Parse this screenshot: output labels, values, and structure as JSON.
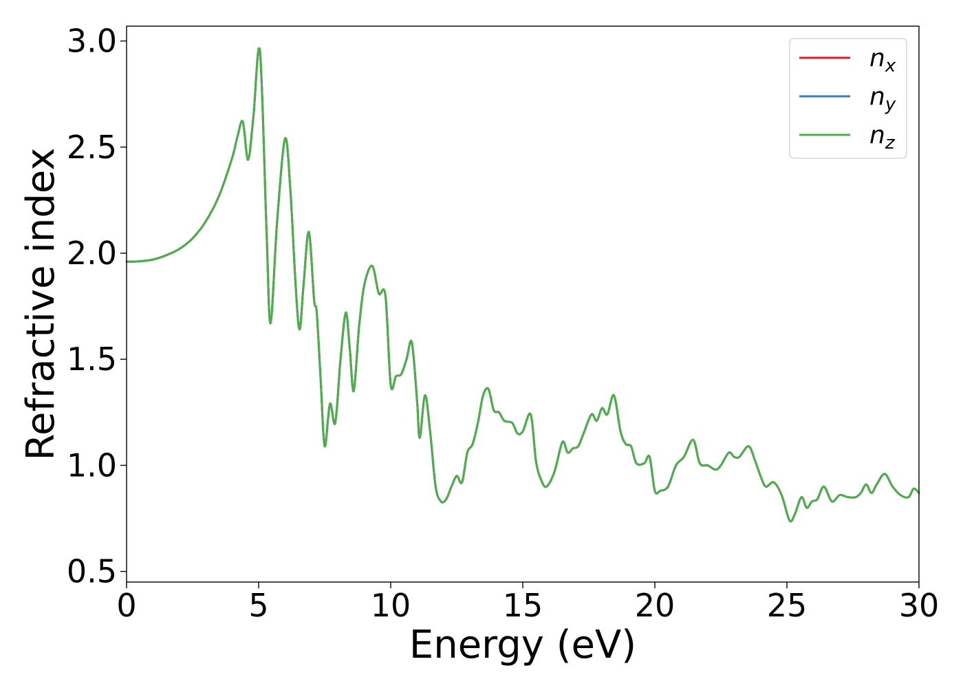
{
  "chart_data": {
    "type": "line",
    "title": "",
    "xlabel": "Energy (eV)",
    "ylabel": "Refractive index",
    "xlim": [
      0,
      30
    ],
    "ylim": [
      0.45,
      3.07
    ],
    "xticks": [
      0,
      5,
      10,
      15,
      20,
      25,
      30
    ],
    "xtick_labels": [
      "0",
      "5",
      "10",
      "15",
      "20",
      "25",
      "30"
    ],
    "yticks": [
      0.5,
      1.0,
      1.5,
      2.0,
      2.5,
      3.0
    ],
    "ytick_labels": [
      "0.5",
      "1.0",
      "1.5",
      "2.0",
      "2.5",
      "3.0"
    ],
    "grid": false,
    "legend_position": "top-right",
    "x": [
      0,
      0.5,
      1,
      1.5,
      2,
      2.5,
      3,
      3.5,
      4,
      4.2,
      4.4,
      4.6,
      4.8,
      5.05,
      5.3,
      5.45,
      5.7,
      6.0,
      6.2,
      6.4,
      6.55,
      6.7,
      6.9,
      7.1,
      7.2,
      7.35,
      7.5,
      7.7,
      7.9,
      8.1,
      8.3,
      8.45,
      8.6,
      8.8,
      9.0,
      9.3,
      9.55,
      9.8,
      10.0,
      10.2,
      10.4,
      10.6,
      10.8,
      11.0,
      11.1,
      11.3,
      11.5,
      11.7,
      11.9,
      12.1,
      12.3,
      12.5,
      12.7,
      12.9,
      13.1,
      13.3,
      13.5,
      13.7,
      13.9,
      14.1,
      14.3,
      14.6,
      14.8,
      15.0,
      15.3,
      15.5,
      15.7,
      15.9,
      16.2,
      16.5,
      16.7,
      16.9,
      17.1,
      17.3,
      17.6,
      17.8,
      18.0,
      18.2,
      18.45,
      18.7,
      18.9,
      19.1,
      19.3,
      19.6,
      19.8,
      20.0,
      20.2,
      20.5,
      20.8,
      21.1,
      21.45,
      21.7,
      22.0,
      22.3,
      22.5,
      22.8,
      23.0,
      23.2,
      23.55,
      23.8,
      24.0,
      24.2,
      24.5,
      24.8,
      25.1,
      25.3,
      25.55,
      25.75,
      25.95,
      26.15,
      26.4,
      26.7,
      27.0,
      27.3,
      27.6,
      27.8,
      28.0,
      28.2,
      28.4,
      28.7,
      29.0,
      29.3,
      29.6,
      29.8,
      30.0
    ],
    "series": [
      {
        "name": "n",
        "sub": "x",
        "color": "#e41a1c",
        "values": [
          1.96,
          1.962,
          1.97,
          1.99,
          2.02,
          2.07,
          2.15,
          2.27,
          2.45,
          2.55,
          2.62,
          2.44,
          2.64,
          2.95,
          2.1,
          1.67,
          2.15,
          2.54,
          2.3,
          1.85,
          1.64,
          1.85,
          2.1,
          1.78,
          1.72,
          1.4,
          1.09,
          1.29,
          1.2,
          1.5,
          1.72,
          1.55,
          1.35,
          1.65,
          1.85,
          1.94,
          1.81,
          1.8,
          1.38,
          1.42,
          1.43,
          1.5,
          1.58,
          1.3,
          1.13,
          1.33,
          1.15,
          0.9,
          0.83,
          0.84,
          0.9,
          0.95,
          0.92,
          1.06,
          1.1,
          1.2,
          1.33,
          1.36,
          1.26,
          1.25,
          1.21,
          1.2,
          1.15,
          1.16,
          1.24,
          1.02,
          0.93,
          0.9,
          0.97,
          1.11,
          1.06,
          1.08,
          1.09,
          1.15,
          1.24,
          1.21,
          1.27,
          1.24,
          1.33,
          1.16,
          1.1,
          1.09,
          1.01,
          1.01,
          1.04,
          0.88,
          0.88,
          0.9,
          1.0,
          1.04,
          1.12,
          1.01,
          1.0,
          0.98,
          1.0,
          1.06,
          1.04,
          1.04,
          1.09,
          1.02,
          0.95,
          0.9,
          0.92,
          0.86,
          0.74,
          0.77,
          0.85,
          0.8,
          0.83,
          0.84,
          0.9,
          0.83,
          0.86,
          0.85,
          0.85,
          0.87,
          0.91,
          0.87,
          0.91,
          0.96,
          0.9,
          0.86,
          0.85,
          0.89,
          0.87
        ]
      },
      {
        "name": "n",
        "sub": "y",
        "color": "#377eb8",
        "values": [
          1.96,
          1.962,
          1.97,
          1.99,
          2.02,
          2.07,
          2.15,
          2.27,
          2.45,
          2.55,
          2.62,
          2.44,
          2.64,
          2.95,
          2.1,
          1.67,
          2.15,
          2.54,
          2.3,
          1.85,
          1.64,
          1.85,
          2.1,
          1.78,
          1.72,
          1.4,
          1.09,
          1.29,
          1.2,
          1.5,
          1.72,
          1.55,
          1.35,
          1.65,
          1.85,
          1.94,
          1.81,
          1.8,
          1.38,
          1.42,
          1.43,
          1.5,
          1.58,
          1.3,
          1.13,
          1.33,
          1.15,
          0.9,
          0.83,
          0.84,
          0.9,
          0.95,
          0.92,
          1.06,
          1.1,
          1.2,
          1.33,
          1.36,
          1.26,
          1.25,
          1.21,
          1.2,
          1.15,
          1.16,
          1.24,
          1.02,
          0.93,
          0.9,
          0.97,
          1.11,
          1.06,
          1.08,
          1.09,
          1.15,
          1.24,
          1.21,
          1.27,
          1.24,
          1.33,
          1.16,
          1.1,
          1.09,
          1.01,
          1.01,
          1.04,
          0.88,
          0.88,
          0.9,
          1.0,
          1.04,
          1.12,
          1.01,
          1.0,
          0.98,
          1.0,
          1.06,
          1.04,
          1.04,
          1.09,
          1.02,
          0.95,
          0.9,
          0.92,
          0.86,
          0.74,
          0.77,
          0.85,
          0.8,
          0.83,
          0.84,
          0.9,
          0.83,
          0.86,
          0.85,
          0.85,
          0.87,
          0.91,
          0.87,
          0.91,
          0.96,
          0.9,
          0.86,
          0.85,
          0.89,
          0.87
        ]
      },
      {
        "name": "n",
        "sub": "z",
        "color": "#4daf4a",
        "values": [
          1.96,
          1.962,
          1.97,
          1.99,
          2.02,
          2.07,
          2.15,
          2.27,
          2.45,
          2.55,
          2.62,
          2.44,
          2.64,
          2.95,
          2.1,
          1.67,
          2.15,
          2.54,
          2.3,
          1.85,
          1.64,
          1.85,
          2.1,
          1.78,
          1.72,
          1.4,
          1.09,
          1.29,
          1.2,
          1.5,
          1.72,
          1.55,
          1.35,
          1.65,
          1.85,
          1.94,
          1.81,
          1.8,
          1.38,
          1.42,
          1.43,
          1.5,
          1.58,
          1.3,
          1.13,
          1.33,
          1.15,
          0.9,
          0.83,
          0.84,
          0.9,
          0.95,
          0.92,
          1.06,
          1.1,
          1.2,
          1.33,
          1.36,
          1.26,
          1.25,
          1.21,
          1.2,
          1.15,
          1.16,
          1.24,
          1.02,
          0.93,
          0.9,
          0.97,
          1.11,
          1.06,
          1.08,
          1.09,
          1.15,
          1.24,
          1.21,
          1.27,
          1.24,
          1.33,
          1.16,
          1.1,
          1.09,
          1.01,
          1.01,
          1.04,
          0.88,
          0.88,
          0.9,
          1.0,
          1.04,
          1.12,
          1.01,
          1.0,
          0.98,
          1.0,
          1.06,
          1.04,
          1.04,
          1.09,
          1.02,
          0.95,
          0.9,
          0.92,
          0.86,
          0.74,
          0.77,
          0.85,
          0.8,
          0.83,
          0.84,
          0.9,
          0.83,
          0.86,
          0.85,
          0.85,
          0.87,
          0.91,
          0.87,
          0.91,
          0.96,
          0.9,
          0.86,
          0.85,
          0.89,
          0.87
        ]
      }
    ]
  }
}
